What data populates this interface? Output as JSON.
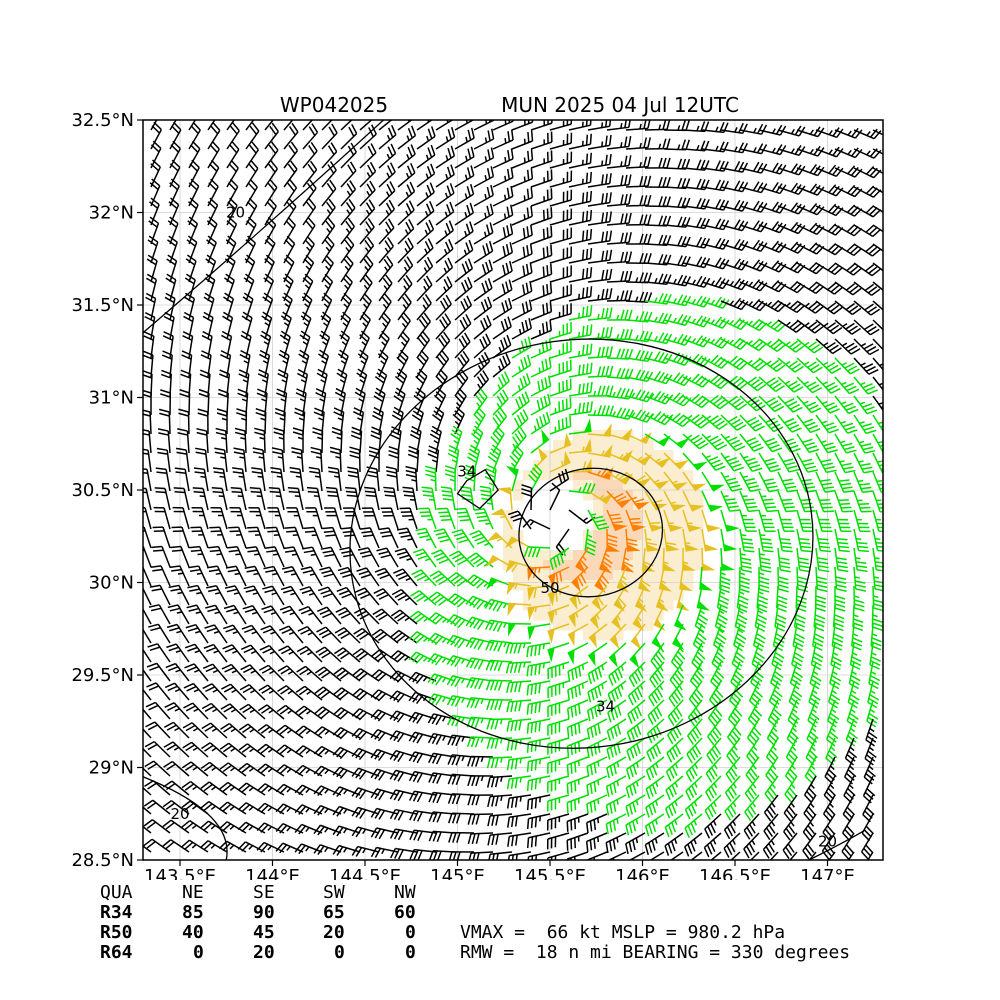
{
  "header": {
    "storm_id": "WP042025",
    "storm_info": "MUN 2025 04 Jul 12UTC"
  },
  "chart_data": {
    "type": "wind_barb_map",
    "xlim": [
      143.3,
      147.3
    ],
    "ylim": [
      28.5,
      32.5
    ],
    "xticks": [
      143.5,
      144.0,
      144.5,
      145.0,
      145.5,
      146.0,
      146.5,
      147.0
    ],
    "xtick_labels": [
      "143.5°E",
      "144°E",
      "144.5°E",
      "145°E",
      "145.5°E",
      "146°E",
      "146.5°E",
      "147°E"
    ],
    "yticks": [
      28.5,
      29.0,
      29.5,
      30.0,
      30.5,
      31.0,
      31.5,
      32.0,
      32.5
    ],
    "ytick_labels": [
      "28.5°N",
      "29°N",
      "29.5°N",
      "30°N",
      "30.5°N",
      "31°N",
      "31.5°N",
      "32°N",
      "32.5°N"
    ],
    "grid": true,
    "center": {
      "lon": 145.55,
      "lat": 30.35
    },
    "contour_labels": [
      {
        "text": "34",
        "lon": 145.05,
        "lat": 30.6
      },
      {
        "text": "50",
        "lon": 145.5,
        "lat": 29.97
      },
      {
        "text": "34",
        "lon": 145.8,
        "lat": 29.33
      },
      {
        "text": "20",
        "lon": 143.8,
        "lat": 32.0
      },
      {
        "text": "20",
        "lon": 143.5,
        "lat": 28.75
      },
      {
        "text": "20",
        "lon": 147.0,
        "lat": 28.6
      }
    ],
    "speed_bands": [
      {
        "min": 0,
        "max": 34,
        "color": "#000000"
      },
      {
        "min": 34,
        "max": 50,
        "color": "#00e000"
      },
      {
        "min": 50,
        "max": 64,
        "color": "#e6c020"
      },
      {
        "min": 64,
        "max": 80,
        "color": "#ff7f00"
      },
      {
        "min": 80,
        "max": 999,
        "color": "#e00000"
      }
    ]
  },
  "radii_table": {
    "columns": [
      "QUA",
      "NE",
      "SE",
      "SW",
      "NW"
    ],
    "rows": [
      {
        "label": "R34",
        "values": [
          "85",
          "90",
          "65",
          "60"
        ]
      },
      {
        "label": "R50",
        "values": [
          "40",
          "45",
          "20",
          "0"
        ]
      },
      {
        "label": "R64",
        "values": [
          "0",
          "20",
          "0",
          "0"
        ]
      }
    ]
  },
  "stats": {
    "line1": "VMAX =  66 kt MSLP = 980.2 hPa",
    "line2": "RMW =  18 n mi BEARING = 330 degrees"
  }
}
